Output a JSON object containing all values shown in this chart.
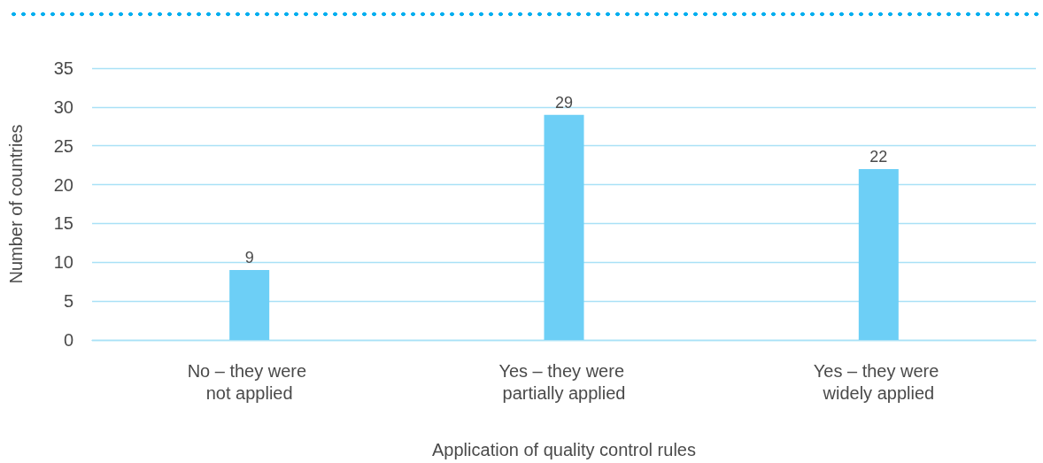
{
  "chart_data": {
    "type": "bar",
    "xlabel": "Application of quality control rules",
    "ylabel": "Number of countries",
    "categories": [
      "No – they were not applied",
      "Yes – they were partially applied",
      "Yes – they were widely applied"
    ],
    "values": [
      9,
      29,
      22
    ],
    "data_labels": true,
    "color": "#6dcff6",
    "ylim": [
      0,
      35
    ],
    "yticks": [
      0,
      5,
      10,
      15,
      20,
      25,
      30,
      35
    ],
    "grid": "y"
  }
}
